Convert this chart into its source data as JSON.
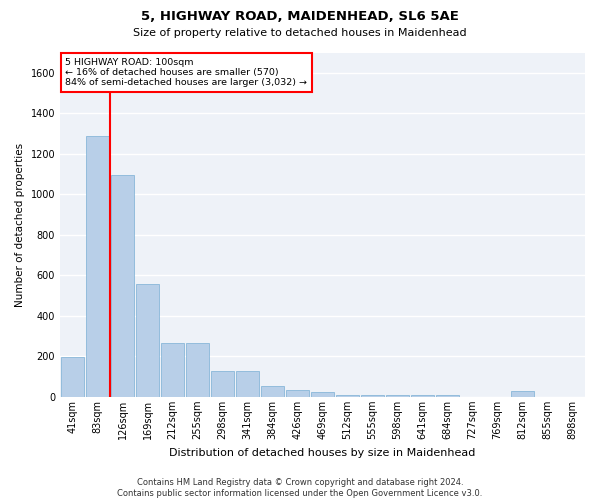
{
  "title": "5, HIGHWAY ROAD, MAIDENHEAD, SL6 5AE",
  "subtitle": "Size of property relative to detached houses in Maidenhead",
  "xlabel": "Distribution of detached houses by size in Maidenhead",
  "ylabel": "Number of detached properties",
  "categories": [
    "41sqm",
    "83sqm",
    "126sqm",
    "169sqm",
    "212sqm",
    "255sqm",
    "298sqm",
    "341sqm",
    "384sqm",
    "426sqm",
    "469sqm",
    "512sqm",
    "555sqm",
    "598sqm",
    "641sqm",
    "684sqm",
    "727sqm",
    "769sqm",
    "812sqm",
    "855sqm",
    "898sqm"
  ],
  "values": [
    195,
    1290,
    1095,
    555,
    265,
    265,
    128,
    128,
    55,
    32,
    22,
    10,
    10,
    10,
    10,
    10,
    0,
    0,
    28,
    0,
    0
  ],
  "bar_color": "#b8cfe8",
  "bar_edge_color": "#7aafd4",
  "reference_line_x": 1.5,
  "annotation_text_line1": "5 HIGHWAY ROAD: 100sqm",
  "annotation_text_line2": "← 16% of detached houses are smaller (570)",
  "annotation_text_line3": "84% of semi-detached houses are larger (3,032) →",
  "annotation_box_color": "#ff0000",
  "ylim": [
    0,
    1700
  ],
  "yticks": [
    0,
    200,
    400,
    600,
    800,
    1000,
    1200,
    1400,
    1600
  ],
  "background_color": "#eef2f8",
  "footer_line1": "Contains HM Land Registry data © Crown copyright and database right 2024.",
  "footer_line2": "Contains public sector information licensed under the Open Government Licence v3.0.",
  "title_fontsize": 9.5,
  "subtitle_fontsize": 8,
  "ylabel_fontsize": 7.5,
  "xlabel_fontsize": 8,
  "tick_fontsize": 7,
  "footer_fontsize": 6
}
